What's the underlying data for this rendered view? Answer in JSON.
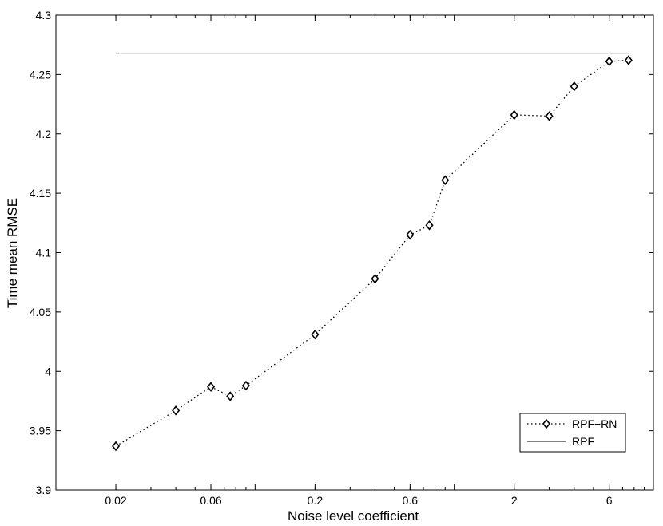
{
  "chart_data": {
    "type": "line",
    "xscale": "log",
    "xlim": [
      0.01,
      10
    ],
    "ylim": [
      3.9,
      4.3
    ],
    "xlabel": "Noise level coefficient",
    "ylabel": "Time mean RMSE",
    "xticks": [
      0.02,
      0.06,
      0.2,
      0.6,
      2,
      6
    ],
    "xtick_labels": [
      "0.02",
      "0.06",
      "0.2",
      "0.6",
      "2",
      "6"
    ],
    "yticks": [
      3.9,
      3.95,
      4.0,
      4.05,
      4.1,
      4.15,
      4.2,
      4.25,
      4.3
    ],
    "ytick_labels": [
      "3.9",
      "3.95",
      "4",
      "4.05",
      "4.1",
      "4.15",
      "4.2",
      "4.25",
      "4.3"
    ],
    "grid": false,
    "legend_position": "bottom-right",
    "series": [
      {
        "name": "RPF−RN",
        "style": "dotted",
        "marker": "diamond",
        "color": "#000000",
        "x": [
          0.02,
          0.04,
          0.06,
          0.075,
          0.09,
          0.2,
          0.4,
          0.6,
          0.75,
          0.9,
          2.0,
          3.0,
          4.0,
          6.0,
          7.5
        ],
        "y": [
          3.937,
          3.967,
          3.987,
          3.979,
          3.988,
          4.031,
          4.078,
          4.115,
          4.123,
          4.161,
          4.216,
          4.215,
          4.24,
          4.261,
          4.262
        ]
      },
      {
        "name": "RPF",
        "style": "solid",
        "marker": "none",
        "color": "#000000",
        "x": [
          0.02,
          7.5
        ],
        "y": [
          4.268,
          4.268
        ]
      }
    ]
  }
}
